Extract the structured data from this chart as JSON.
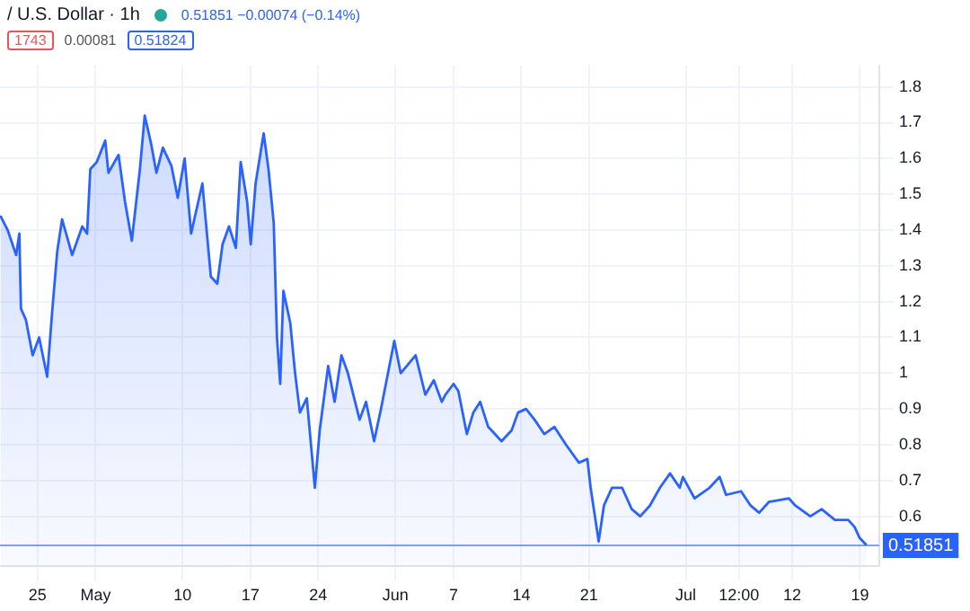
{
  "chart_data": {
    "type": "area",
    "title": "/ U.S. Dollar · 1h",
    "annotations": [
      "0.51851 −0.00074 (−0.14%)",
      "1743",
      "0.00081",
      "0.51824"
    ],
    "x": [
      "--04-21T04:00",
      "--04-21T22:00",
      "--04-22T19:00",
      "--04-23T03:00",
      "--04-23T07:00",
      "--04-23T19:00",
      "--04-24T12:00",
      "--04-25T04:00",
      "--04-26T00:00",
      "--04-26T13:00",
      "--04-27T01:00",
      "--04-27T13:00",
      "--04-28T14:00",
      "--04-29T15:00",
      "--04-30T03:00",
      "--04-30T11:00",
      "--05-01T03:00",
      "--05-02T00:00",
      "--05-02T08:00",
      "--05-03T09:00",
      "--05-04T01:00",
      "--05-04T18:00",
      "--05-05T14:00",
      "--05-06T02:00",
      "--05-06T18:00",
      "--05-07T07:00",
      "--05-07T23:00",
      "--05-08T20:00",
      "--05-09T12:00",
      "--05-10T05:00",
      "--05-10T21:00",
      "--05-12T01:00",
      "--05-12T22:00",
      "--05-13T14:00",
      "--05-14T03:00",
      "--05-14T19:00",
      "--05-15T12:00",
      "--05-16T00:00",
      "--05-16T16:00",
      "--05-17T01:00",
      "--05-17T13:00",
      "--05-18T09:00",
      "--05-18T21:00",
      "--05-19T10:00",
      "--05-19T18:00",
      "--05-20T02:00",
      "--05-20T10:00",
      "--05-21T03:00",
      "--05-21T15:00",
      "--05-22T03:00",
      "--05-22T20:00",
      "--05-23T16:00",
      "--05-24T04:00",
      "--05-25T01:00",
      "--05-25T17:00",
      "--05-26T10:00",
      "--05-27T02:00",
      "--05-28T07:00",
      "--05-28T23:00",
      "--05-29T19:00",
      "--05-30T12:00",
      "--05-31T21:00",
      "--06-01T13:00",
      "--06-03T02:00",
      "--06-04T02:00",
      "--06-04T23:00",
      "--06-05T19:00",
      "--06-06T04:00",
      "--06-07T00:00",
      "--06-07T12:00",
      "--06-08T09:00",
      "--06-09T01:00",
      "--06-09T18:00",
      "--06-10T14:00",
      "--06-11T23:00",
      "--06-13T00:00",
      "--06-13T16:00",
      "--06-14T12:00",
      "--06-15T09:00",
      "--06-16T09:00",
      "--06-17T10:00",
      "--06-18T15:00",
      "--06-19T23:00",
      "--06-20T20:00",
      "--06-21T04:00",
      "--06-22T00:00",
      "--06-22T13:00",
      "--06-23T09:00",
      "--06-24T10:00",
      "--06-25T10:00",
      "--06-26T07:00",
      "--06-27T07:00",
      "--06-28T08:00",
      "--06-29T09:00",
      "--06-30T09:00",
      "--06-30T17:00",
      "--07-01T22:00",
      "--07-03T11:00",
      "--07-04T12:00",
      "--07-05T04:00",
      "--07-06T17:00",
      "--07-07T17:00",
      "--07-08T14:00",
      "--07-09T14:00",
      "--07-11T16:00",
      "--07-12T08:00",
      "--07-13T21:00",
      "--07-15T01:00",
      "--07-16T10:00",
      "--07-17T19:00",
      "--07-18T11:00",
      "--07-18T23:00",
      "--07-19T16:00"
    ],
    "series": [
      {
        "color": "#2962ff",
        "values": [
          1.44,
          1.4,
          1.33,
          1.39,
          1.18,
          1.15,
          1.05,
          1.1,
          0.99,
          1.18,
          1.34,
          1.43,
          1.33,
          1.41,
          1.39,
          1.57,
          1.59,
          1.65,
          1.56,
          1.61,
          1.48,
          1.37,
          1.57,
          1.72,
          1.64,
          1.56,
          1.63,
          1.58,
          1.49,
          1.6,
          1.39,
          1.53,
          1.27,
          1.25,
          1.36,
          1.41,
          1.35,
          1.59,
          1.48,
          1.36,
          1.53,
          1.67,
          1.57,
          1.42,
          1.1,
          0.97,
          1.23,
          1.14,
          1.0,
          0.89,
          0.93,
          0.68,
          0.84,
          1.02,
          0.92,
          1.05,
          1.0,
          0.87,
          0.92,
          0.81,
          0.9,
          1.09,
          1.0,
          1.05,
          0.94,
          0.98,
          0.92,
          0.94,
          0.97,
          0.95,
          0.83,
          0.89,
          0.92,
          0.85,
          0.81,
          0.84,
          0.89,
          0.9,
          0.87,
          0.83,
          0.85,
          0.8,
          0.75,
          0.76,
          0.68,
          0.53,
          0.63,
          0.68,
          0.68,
          0.62,
          0.6,
          0.63,
          0.68,
          0.72,
          0.68,
          0.71,
          0.65,
          0.68,
          0.71,
          0.66,
          0.67,
          0.63,
          0.61,
          0.64,
          0.65,
          0.63,
          0.6,
          0.62,
          0.59,
          0.59,
          0.57,
          0.54,
          0.52
        ]
      }
    ],
    "xlim": [
      "--04-21T03:00",
      "--07-21T00:00"
    ],
    "xticks": [
      {
        "value": "--04-25",
        "label": "25"
      },
      {
        "value": "--05-01",
        "label": "May"
      },
      {
        "value": "--05-10",
        "label": "10"
      },
      {
        "value": "--05-17",
        "label": "17"
      },
      {
        "value": "--05-24",
        "label": "24"
      },
      {
        "value": "--06-01",
        "label": "Jun"
      },
      {
        "value": "--06-07",
        "label": "7"
      },
      {
        "value": "--06-14",
        "label": "14"
      },
      {
        "value": "--06-21",
        "label": "21"
      },
      {
        "value": "--07-01",
        "label": "Jul"
      },
      {
        "value": "--07-06T12:00",
        "label": "12:00"
      },
      {
        "value": "--07-12",
        "label": "12"
      },
      {
        "value": "--07-19",
        "label": "19"
      }
    ],
    "ylim": [
      0.46,
      1.86
    ],
    "yticks": [
      0.6,
      0.7,
      0.8,
      0.9,
      1.0,
      1.1,
      1.2,
      1.3,
      1.4,
      1.5,
      1.6,
      1.7,
      1.8
    ],
    "ref_lines": [
      {
        "axis": "y",
        "value": 0.51851,
        "label": "0.51851",
        "color": "#2962ff"
      }
    ],
    "grid": true,
    "legend": false,
    "marker": "none",
    "line_style": "solid"
  }
}
